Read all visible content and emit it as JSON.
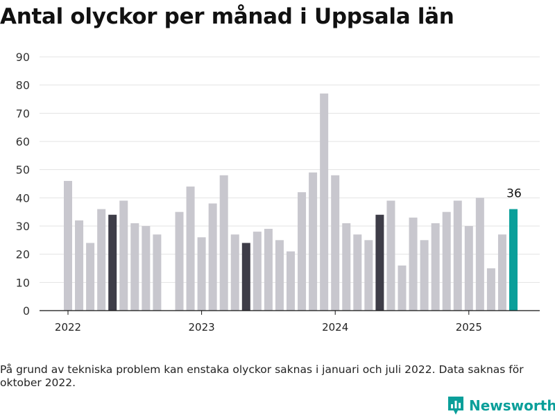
{
  "chart_data": {
    "type": "bar",
    "title": "Antal olyckor per månad i Uppsala län",
    "xlabel": "",
    "ylabel": "",
    "ylim": [
      0,
      90
    ],
    "y_ticks": [
      0,
      10,
      20,
      30,
      40,
      50,
      60,
      70,
      80,
      90
    ],
    "x_tick_labels": [
      "2022",
      "2023",
      "2024",
      "2025"
    ],
    "grid": true,
    "months": [
      "2022-01",
      "2022-02",
      "2022-03",
      "2022-04",
      "2022-05",
      "2022-06",
      "2022-07",
      "2022-08",
      "2022-09",
      "2022-10",
      "2022-11",
      "2022-12",
      "2023-01",
      "2023-02",
      "2023-03",
      "2023-04",
      "2023-05",
      "2023-06",
      "2023-07",
      "2023-08",
      "2023-09",
      "2023-10",
      "2023-11",
      "2023-12",
      "2024-01",
      "2024-02",
      "2024-03",
      "2024-04",
      "2024-05",
      "2024-06",
      "2024-07",
      "2024-08",
      "2024-09",
      "2024-10",
      "2024-11",
      "2024-12",
      "2025-01",
      "2025-02",
      "2025-03",
      "2025-04",
      "2025-05"
    ],
    "values": [
      46,
      32,
      24,
      36,
      34,
      39,
      31,
      30,
      27,
      null,
      35,
      44,
      26,
      38,
      48,
      27,
      24,
      28,
      29,
      25,
      21,
      42,
      49,
      77,
      48,
      31,
      27,
      25,
      34,
      39,
      16,
      33,
      25,
      31,
      35,
      39,
      30,
      40,
      15,
      27,
      36
    ],
    "highlight_same_month_indices": [
      4,
      16,
      28
    ],
    "latest_index": 40,
    "data_label": "36",
    "colors": {
      "default": "#c8c7ce",
      "same_month": "#3e3d48",
      "latest": "#0a9f9a"
    }
  },
  "note": "På grund av tekniska problem kan enstaka olyckor saknas i januari och juli 2022. Data saknas för oktober 2022.",
  "brand": {
    "name": "Newsworthy",
    "icon": "bar-chart-badge-icon",
    "color": "#0a9f9a"
  }
}
